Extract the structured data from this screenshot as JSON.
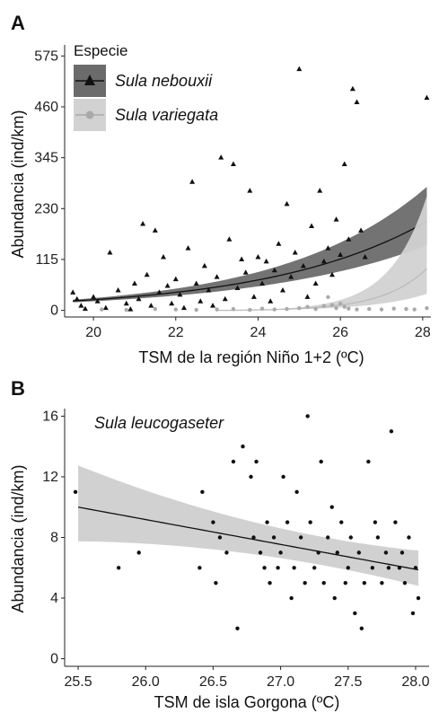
{
  "chart_data": [
    {
      "panel": "A",
      "type": "scatter",
      "xlabel": "TSM de la región Niño 1+2 (ºC)",
      "ylabel": "Abundancia (ind/km)",
      "xlim": [
        19.3,
        28.2
      ],
      "ylim": [
        -15,
        600
      ],
      "xticks": [
        20,
        22,
        24,
        26,
        28
      ],
      "yticks": [
        0,
        115,
        230,
        345,
        460,
        575
      ],
      "legend": {
        "title": "Especie",
        "position": "top-left"
      },
      "series": [
        {
          "name": "Sula nebouxii",
          "marker": "triangle",
          "color": "#111111",
          "band_color": "#6b6b6b",
          "fit": {
            "a": 3.05,
            "b": 0.262,
            "lo_a": 2.9,
            "lo_b": 0.243,
            "hi_a": 3.18,
            "hi_b": 0.285
          },
          "points": [
            [
              19.5,
              40
            ],
            [
              19.6,
              25
            ],
            [
              19.7,
              10
            ],
            [
              19.8,
              3
            ],
            [
              20.0,
              30
            ],
            [
              20.1,
              20
            ],
            [
              20.3,
              5
            ],
            [
              20.4,
              130
            ],
            [
              20.6,
              45
            ],
            [
              20.8,
              15
            ],
            [
              20.9,
              2
            ],
            [
              21.0,
              60
            ],
            [
              21.1,
              25
            ],
            [
              21.2,
              195
            ],
            [
              21.3,
              80
            ],
            [
              21.4,
              10
            ],
            [
              21.5,
              180
            ],
            [
              21.6,
              40
            ],
            [
              21.7,
              120
            ],
            [
              21.8,
              55
            ],
            [
              21.9,
              15
            ],
            [
              22.0,
              70
            ],
            [
              22.1,
              35
            ],
            [
              22.2,
              5
            ],
            [
              22.3,
              140
            ],
            [
              22.4,
              290
            ],
            [
              22.5,
              60
            ],
            [
              22.6,
              20
            ],
            [
              22.7,
              100
            ],
            [
              22.8,
              45
            ],
            [
              22.9,
              10
            ],
            [
              23.0,
              75
            ],
            [
              23.1,
              345
            ],
            [
              23.2,
              25
            ],
            [
              23.3,
              160
            ],
            [
              23.4,
              330
            ],
            [
              23.5,
              50
            ],
            [
              23.6,
              115
            ],
            [
              23.7,
              85
            ],
            [
              23.8,
              270
            ],
            [
              23.9,
              30
            ],
            [
              24.0,
              120
            ],
            [
              24.1,
              60
            ],
            [
              24.2,
              110
            ],
            [
              24.3,
              20
            ],
            [
              24.4,
              90
            ],
            [
              24.5,
              150
            ],
            [
              24.6,
              45
            ],
            [
              24.7,
              240
            ],
            [
              24.8,
              75
            ],
            [
              24.9,
              130
            ],
            [
              25.0,
              545
            ],
            [
              25.1,
              100
            ],
            [
              25.2,
              30
            ],
            [
              25.3,
              190
            ],
            [
              25.4,
              60
            ],
            [
              25.5,
              270
            ],
            [
              25.6,
              110
            ],
            [
              25.7,
              140
            ],
            [
              25.8,
              80
            ],
            [
              25.9,
              205
            ],
            [
              26.0,
              125
            ],
            [
              26.1,
              330
            ],
            [
              26.2,
              160
            ],
            [
              26.3,
              500
            ],
            [
              26.4,
              470
            ],
            [
              26.5,
              180
            ],
            [
              26.6,
              120
            ],
            [
              28.1,
              480
            ]
          ]
        },
        {
          "name": "Sula variegata",
          "marker": "circle",
          "color": "#aaaaaa",
          "band_color": "#d2d2d2",
          "fit": {
            "a": -45.0,
            "b": 1.8,
            "lo_a": -80.0,
            "lo_b": 3.0,
            "hi_a": -38.0,
            "hi_b": 1.5
          },
          "points": [
            [
              20.2,
              2
            ],
            [
              20.8,
              1
            ],
            [
              21.5,
              3
            ],
            [
              22.0,
              2
            ],
            [
              22.5,
              1
            ],
            [
              23.0,
              2
            ],
            [
              23.4,
              3
            ],
            [
              23.8,
              1
            ],
            [
              24.1,
              4
            ],
            [
              24.4,
              2
            ],
            [
              24.7,
              3
            ],
            [
              25.0,
              5
            ],
            [
              25.2,
              8
            ],
            [
              25.4,
              3
            ],
            [
              25.6,
              10
            ],
            [
              25.7,
              30
            ],
            [
              25.8,
              12
            ],
            [
              25.9,
              5
            ],
            [
              26.0,
              15
            ],
            [
              26.1,
              8
            ],
            [
              26.2,
              4
            ],
            [
              26.4,
              2
            ],
            [
              26.7,
              3
            ],
            [
              27.0,
              2
            ],
            [
              27.3,
              4
            ],
            [
              27.6,
              3
            ],
            [
              27.8,
              2
            ],
            [
              28.1,
              5
            ]
          ]
        }
      ]
    },
    {
      "panel": "B",
      "type": "scatter",
      "annotation": "Sula leucogaseter",
      "xlabel": "TSM de isla Gorgona (ºC)",
      "ylabel": "Abundancia (ind/km)",
      "xlim": [
        25.4,
        28.1
      ],
      "ylim": [
        -0.5,
        16.5
      ],
      "xticks": [
        25.5,
        26.0,
        26.5,
        27.0,
        27.5,
        28.0
      ],
      "yticks": [
        0,
        4,
        8,
        12,
        16
      ],
      "series": [
        {
          "name": "Sula leucogaseter",
          "marker": "circle",
          "color": "#111111",
          "band_color": "#cfcfcf",
          "fit": {
            "x0": 25.5,
            "y0": 10.0,
            "x1": 28.0,
            "y1": 5.9,
            "lo0": 8.1,
            "lo1": 5.2,
            "hi0": 12.4,
            "hi1": 6.8
          },
          "points": [
            [
              25.48,
              11
            ],
            [
              25.8,
              6
            ],
            [
              25.95,
              7
            ],
            [
              26.4,
              6
            ],
            [
              26.42,
              11
            ],
            [
              26.5,
              9
            ],
            [
              26.52,
              5
            ],
            [
              26.55,
              8
            ],
            [
              26.6,
              7
            ],
            [
              26.65,
              13
            ],
            [
              26.68,
              2
            ],
            [
              26.72,
              14
            ],
            [
              26.78,
              12
            ],
            [
              26.8,
              8
            ],
            [
              26.82,
              13
            ],
            [
              26.85,
              7
            ],
            [
              26.88,
              6
            ],
            [
              26.9,
              9
            ],
            [
              26.92,
              5
            ],
            [
              26.95,
              8
            ],
            [
              26.98,
              6
            ],
            [
              27.0,
              7
            ],
            [
              27.02,
              12
            ],
            [
              27.05,
              9
            ],
            [
              27.08,
              4
            ],
            [
              27.1,
              6
            ],
            [
              27.12,
              11
            ],
            [
              27.15,
              8
            ],
            [
              27.18,
              5
            ],
            [
              27.2,
              16
            ],
            [
              27.22,
              9
            ],
            [
              27.25,
              6
            ],
            [
              27.28,
              7
            ],
            [
              27.3,
              13
            ],
            [
              27.32,
              5
            ],
            [
              27.35,
              8
            ],
            [
              27.38,
              10
            ],
            [
              27.4,
              4
            ],
            [
              27.42,
              7
            ],
            [
              27.45,
              9
            ],
            [
              27.48,
              5
            ],
            [
              27.5,
              6
            ],
            [
              27.52,
              8
            ],
            [
              27.55,
              3
            ],
            [
              27.58,
              7
            ],
            [
              27.6,
              2
            ],
            [
              27.62,
              5
            ],
            [
              27.65,
              13
            ],
            [
              27.68,
              6
            ],
            [
              27.7,
              9
            ],
            [
              27.72,
              8
            ],
            [
              27.75,
              5
            ],
            [
              27.78,
              7
            ],
            [
              27.8,
              6
            ],
            [
              27.82,
              15
            ],
            [
              27.85,
              9
            ],
            [
              27.88,
              6
            ],
            [
              27.9,
              7
            ],
            [
              27.92,
              5
            ],
            [
              27.95,
              8
            ],
            [
              27.98,
              3
            ],
            [
              28.0,
              6
            ],
            [
              28.02,
              4
            ]
          ]
        }
      ]
    }
  ]
}
